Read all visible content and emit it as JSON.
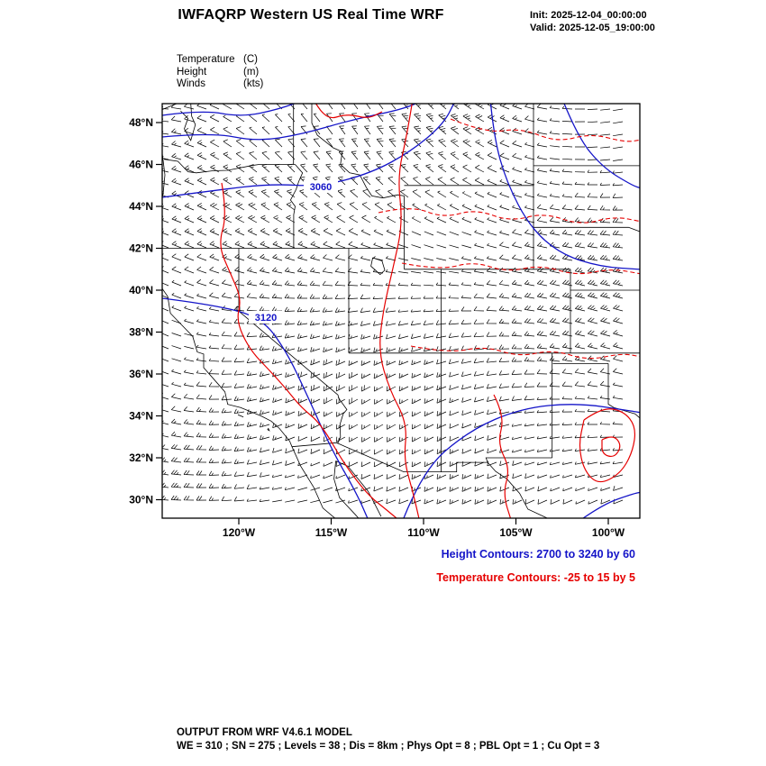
{
  "header": {
    "title": "IWFAQRP Western US Real Time WRF",
    "init": "Init: 2025-12-04_00:00:00",
    "valid": "Valid: 2025-12-05_19:00:00"
  },
  "legend": {
    "rows": [
      {
        "name": "Temperature",
        "unit": "(C)"
      },
      {
        "name": "Height",
        "unit": "(m)"
      },
      {
        "name": "Winds",
        "unit": "(kts)"
      }
    ]
  },
  "map": {
    "lat_ticks": [
      "48°N",
      "46°N",
      "44°N",
      "42°N",
      "40°N",
      "38°N",
      "36°N",
      "34°N",
      "32°N",
      "30°N"
    ],
    "lon_ticks": [
      "120°W",
      "115°W",
      "110°W",
      "105°W",
      "100°W"
    ],
    "height_contour_labels": [
      {
        "text": "3060"
      },
      {
        "text": "3120"
      }
    ]
  },
  "annotations": {
    "height_contours": "Height Contours: 2700 to 3240 by 60",
    "temperature_contours": "Temperature Contours: -25 to 15 by 5"
  },
  "footer": {
    "line1": "OUTPUT FROM WRF V4.6.1 MODEL",
    "line2": "WE = 310 ; SN = 275 ; Levels = 38 ; Dis = 8km ; Phys Opt = 8 ; PBL Opt = 1 ; Cu Opt = 3"
  },
  "colors": {
    "height_contour": "#1414c8",
    "temperature_contour": "#e60000",
    "map_lines": "#000000"
  },
  "chart_data": {
    "type": "map-contour",
    "title": "IWFAQRP Western US Real Time WRF",
    "init_time": "2025-12-04_00:00:00",
    "valid_time": "2025-12-05_19:00:00",
    "region": "Western United States",
    "lat_range": [
      30,
      48
    ],
    "lon_range": [
      -120,
      -100
    ],
    "lat_tick_interval_deg": 2,
    "lon_tick_interval_deg": 5,
    "fields": [
      {
        "name": "Height",
        "units": "m",
        "min": 2700,
        "max": 3240,
        "interval": 60,
        "style": "solid blue contours",
        "labeled_values": [
          3060,
          3120
        ]
      },
      {
        "name": "Temperature",
        "units": "C",
        "min": -25,
        "max": 15,
        "interval": 5,
        "style": "red contours (negative dashed)"
      },
      {
        "name": "Winds",
        "units": "kts",
        "style": "black wind barbs on model grid"
      }
    ],
    "model": {
      "version": "WRF V4.6.1",
      "WE": 310,
      "SN": 275,
      "Levels": 38,
      "Dis": "8km",
      "Phys_Opt": 8,
      "PBL_Opt": 1,
      "Cu_Opt": 3
    }
  }
}
